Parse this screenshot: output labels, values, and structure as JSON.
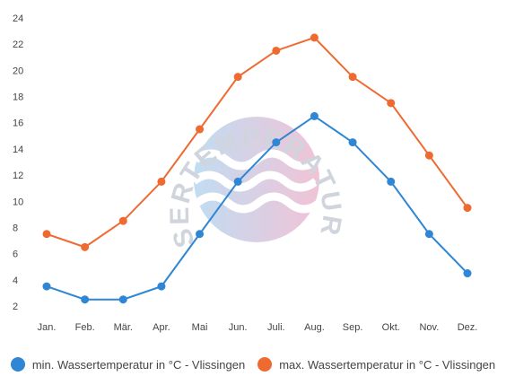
{
  "chart_data": {
    "type": "line",
    "categories": [
      "Jan.",
      "Feb.",
      "Mär.",
      "Apr.",
      "Mai",
      "Jun.",
      "Juli.",
      "Aug.",
      "Sep.",
      "Okt.",
      "Nov.",
      "Dez."
    ],
    "yticks": [
      2,
      4,
      6,
      8,
      10,
      12,
      14,
      16,
      18,
      20,
      22,
      24
    ],
    "ylim": [
      2,
      24
    ],
    "grid": false,
    "legend_position": "bottom",
    "series": [
      {
        "name": "min. Wassertemperatur in °C - Vlissingen",
        "color": "#2e86d4",
        "values": [
          3.5,
          2.5,
          2.5,
          3.5,
          7.5,
          11.5,
          14.5,
          16.5,
          14.5,
          11.5,
          7.5,
          4.5
        ]
      },
      {
        "name": "max. Wassertemperatur in °C - Vlissingen",
        "color": "#ef6a30",
        "values": [
          7.5,
          6.5,
          8.5,
          11.5,
          15.5,
          19.5,
          21.5,
          22.5,
          19.5,
          17.5,
          13.5,
          9.5
        ]
      }
    ]
  },
  "watermark": {
    "text": "WASSERTEMPERATUR.ORG"
  }
}
